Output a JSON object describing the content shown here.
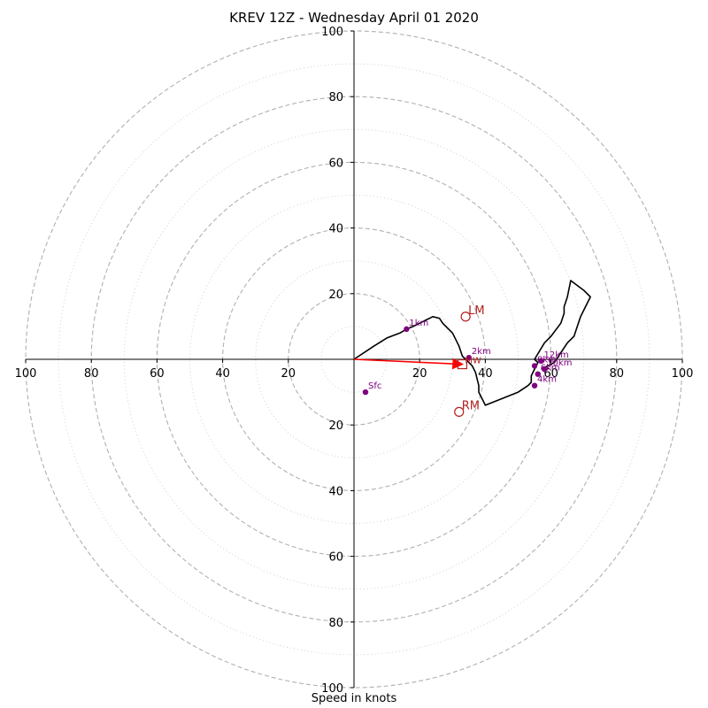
{
  "chart_data": {
    "type": "hodograph",
    "title": "KREV 12Z - Wednesday April 01 2020",
    "xlabel": "Speed in knots",
    "range": [
      -100,
      100
    ],
    "ring_step_major": 20,
    "ring_step_minor": 10,
    "tick_labels": [
      "100",
      "80",
      "60",
      "40",
      "20",
      "20",
      "40",
      "60",
      "80",
      "100"
    ],
    "tick_values": [
      -100,
      -80,
      -60,
      -40,
      -20,
      20,
      40,
      60,
      80,
      100
    ],
    "colors": {
      "trace": "#000000",
      "height_points": "#800080",
      "motion": "#b22222",
      "mean_wind_arrow": "#ff0000",
      "grid": "#b0b0b0"
    },
    "hodograph_trace": [
      [
        0,
        0
      ],
      [
        6,
        4
      ],
      [
        10,
        6.5
      ],
      [
        14,
        8
      ],
      [
        16,
        9.2
      ],
      [
        18,
        10
      ],
      [
        20,
        11
      ],
      [
        22,
        12
      ],
      [
        24,
        13
      ],
      [
        26,
        12.5
      ],
      [
        27,
        11
      ],
      [
        28,
        10
      ],
      [
        30,
        8
      ],
      [
        31,
        6
      ],
      [
        32,
        4
      ],
      [
        33,
        1
      ],
      [
        34,
        0
      ],
      [
        35,
        -1
      ],
      [
        36,
        -2
      ],
      [
        37,
        -4
      ],
      [
        38,
        -8
      ],
      [
        38,
        -10
      ],
      [
        40,
        -14
      ],
      [
        45,
        -12
      ],
      [
        50,
        -10
      ],
      [
        53,
        -8
      ],
      [
        54,
        -7
      ],
      [
        54,
        -5
      ],
      [
        55,
        -3
      ],
      [
        56,
        -1
      ],
      [
        55,
        0
      ],
      [
        58,
        5
      ],
      [
        60,
        7
      ],
      [
        63,
        11
      ],
      [
        64,
        14
      ],
      [
        64,
        16
      ],
      [
        65,
        19
      ],
      [
        66,
        24
      ],
      [
        70,
        21
      ],
      [
        72,
        19
      ],
      [
        70,
        15
      ],
      [
        69,
        13
      ],
      [
        67,
        7
      ],
      [
        65,
        5
      ],
      [
        63,
        2
      ],
      [
        61,
        -1
      ],
      [
        57,
        -3
      ]
    ],
    "height_points": [
      {
        "label": "Sfc",
        "u": 3.5,
        "v": -10
      },
      {
        "label": "1km",
        "u": 16,
        "v": 9.2
      },
      {
        "label": "2km",
        "u": 35,
        "v": 0.5
      },
      {
        "label": "4km",
        "u": 55,
        "v": -8
      },
      {
        "label": "6km",
        "u": 56,
        "v": -4.5
      },
      {
        "label": "8km",
        "u": 55,
        "v": -2
      },
      {
        "label": "10km",
        "u": 58,
        "v": -3
      },
      {
        "label": "12km",
        "u": 57,
        "v": -0.5
      }
    ],
    "storm_motion": [
      {
        "label": "LM",
        "u": 34,
        "v": 13
      },
      {
        "label": "RM",
        "u": 32,
        "v": -16
      },
      {
        "label": "MW",
        "u": 33,
        "v": -1.5
      }
    ],
    "mean_wind_vector": {
      "u": 33,
      "v": -1.5
    }
  }
}
